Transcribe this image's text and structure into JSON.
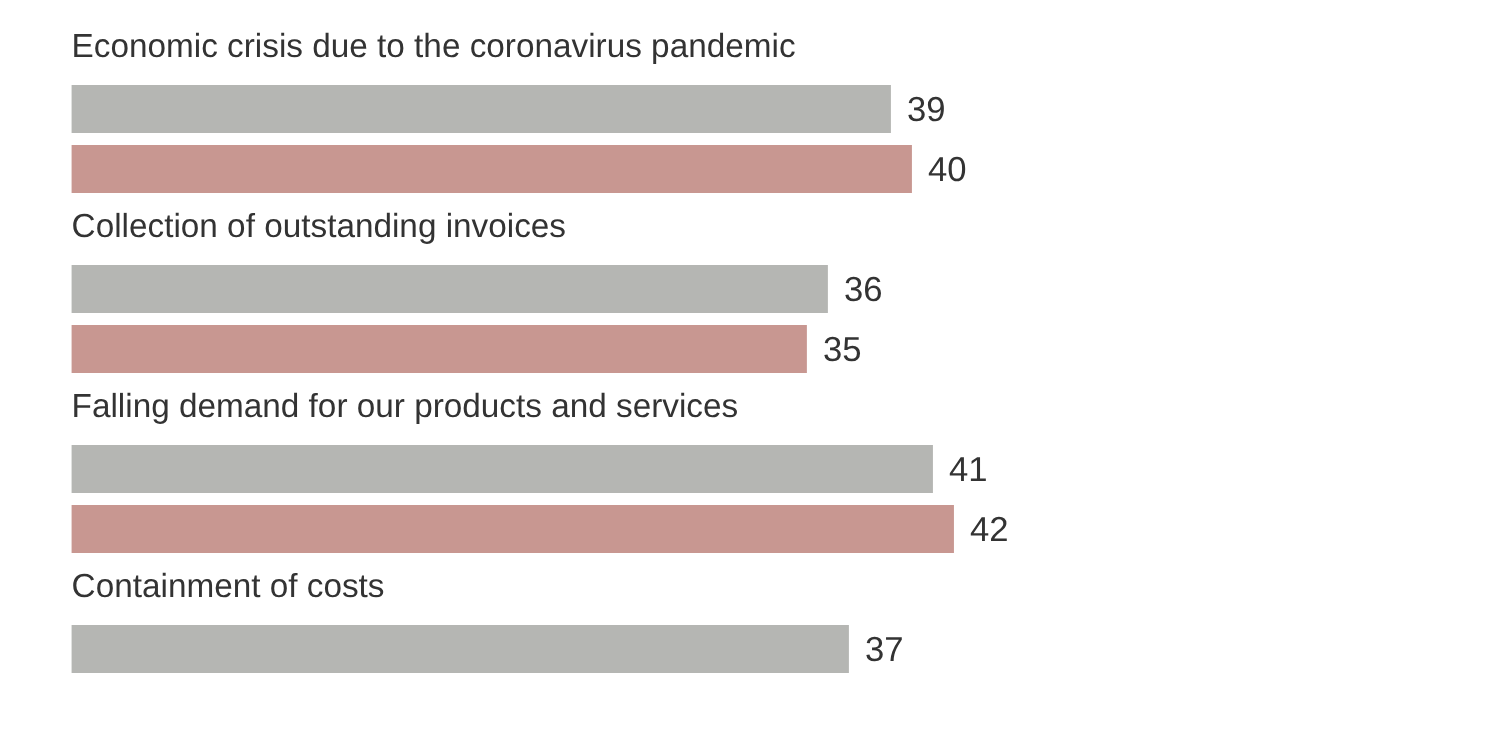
{
  "chart_data": {
    "type": "bar",
    "orientation": "horizontal",
    "data_labels": true,
    "categories": [
      "Economic crisis due to the coronavirus pandemic",
      "Collection of outstanding invoices",
      "Falling demand for our products and services",
      "Containment of costs"
    ],
    "series": [
      {
        "color": "#b5b6b3",
        "values": [
          39,
          36,
          41,
          37
        ]
      },
      {
        "color": "#c89791",
        "values": [
          40,
          35,
          42,
          null
        ]
      }
    ]
  }
}
